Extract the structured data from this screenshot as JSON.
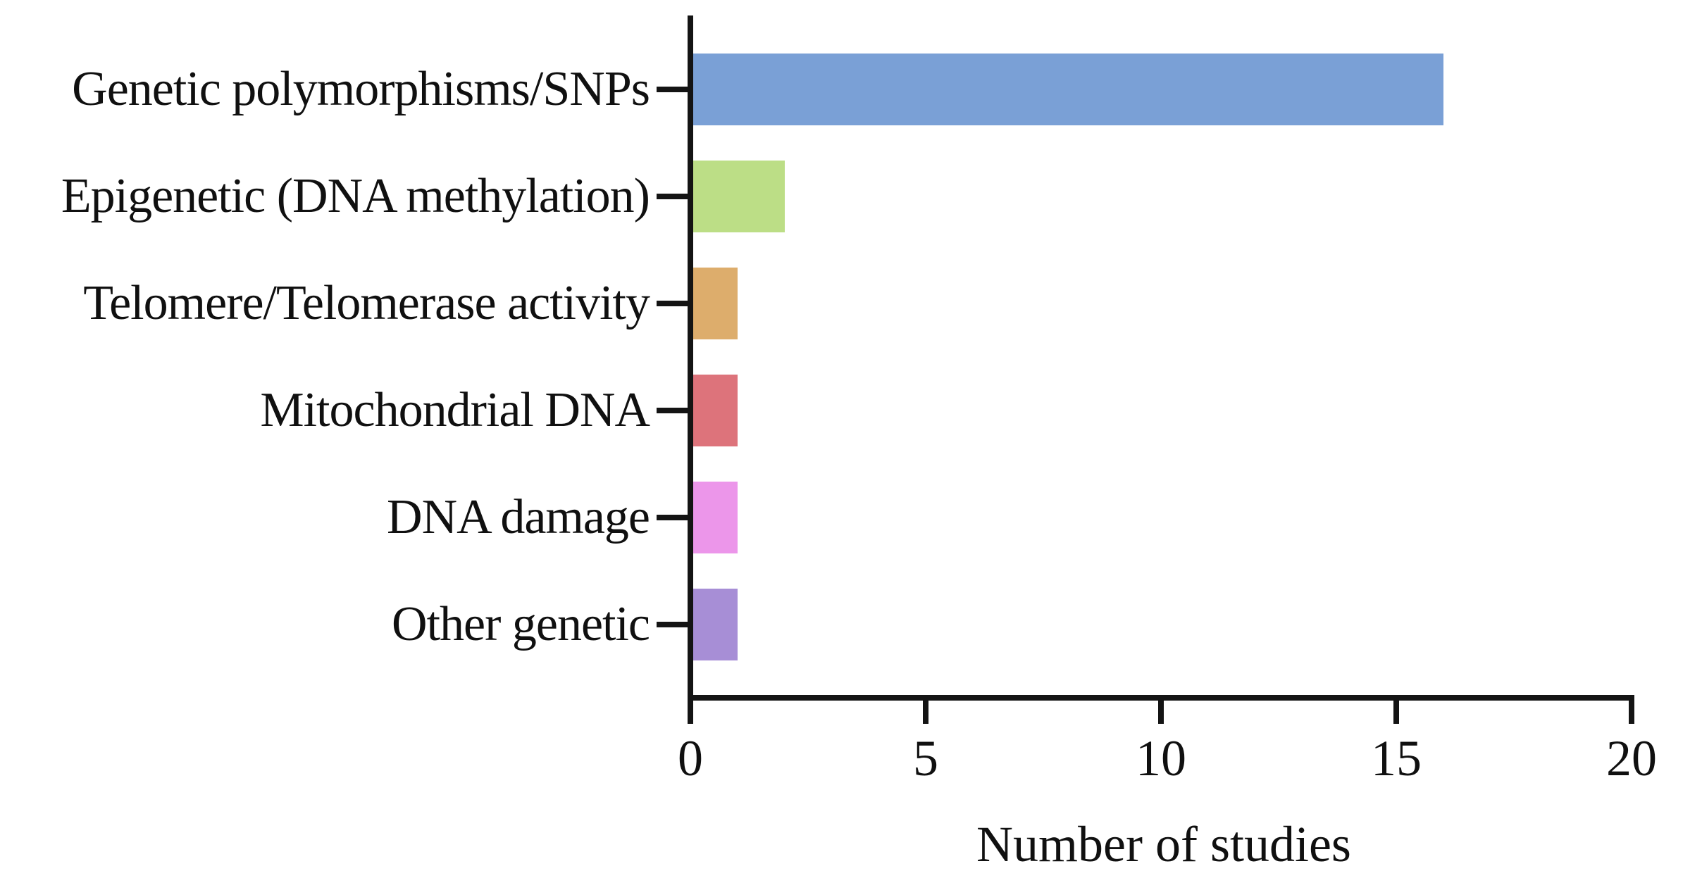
{
  "chart_data": {
    "type": "bar",
    "orientation": "horizontal",
    "categories": [
      "Genetic polymorphisms/SNPs",
      "Epigenetic (DNA methylation)",
      "Telomere/Telomerase activity",
      "Mitochondrial DNA",
      "DNA damage",
      "Other genetic"
    ],
    "values": [
      16,
      2,
      1,
      1,
      1,
      1
    ],
    "bar_colors": [
      "#7AA0D6",
      "#BCDE86",
      "#DDAD6C",
      "#DD737B",
      "#EC96EA",
      "#A78ED6"
    ],
    "xlabel": "Number of studies",
    "xlim": [
      0,
      20
    ],
    "xticks": [
      "0",
      "5",
      "10",
      "15",
      "20"
    ],
    "xtick_values": [
      0,
      5,
      10,
      15,
      20
    ],
    "grid": false,
    "legend_position": "none",
    "axis_color": "#141414",
    "background_color": "#FFFFFF"
  }
}
